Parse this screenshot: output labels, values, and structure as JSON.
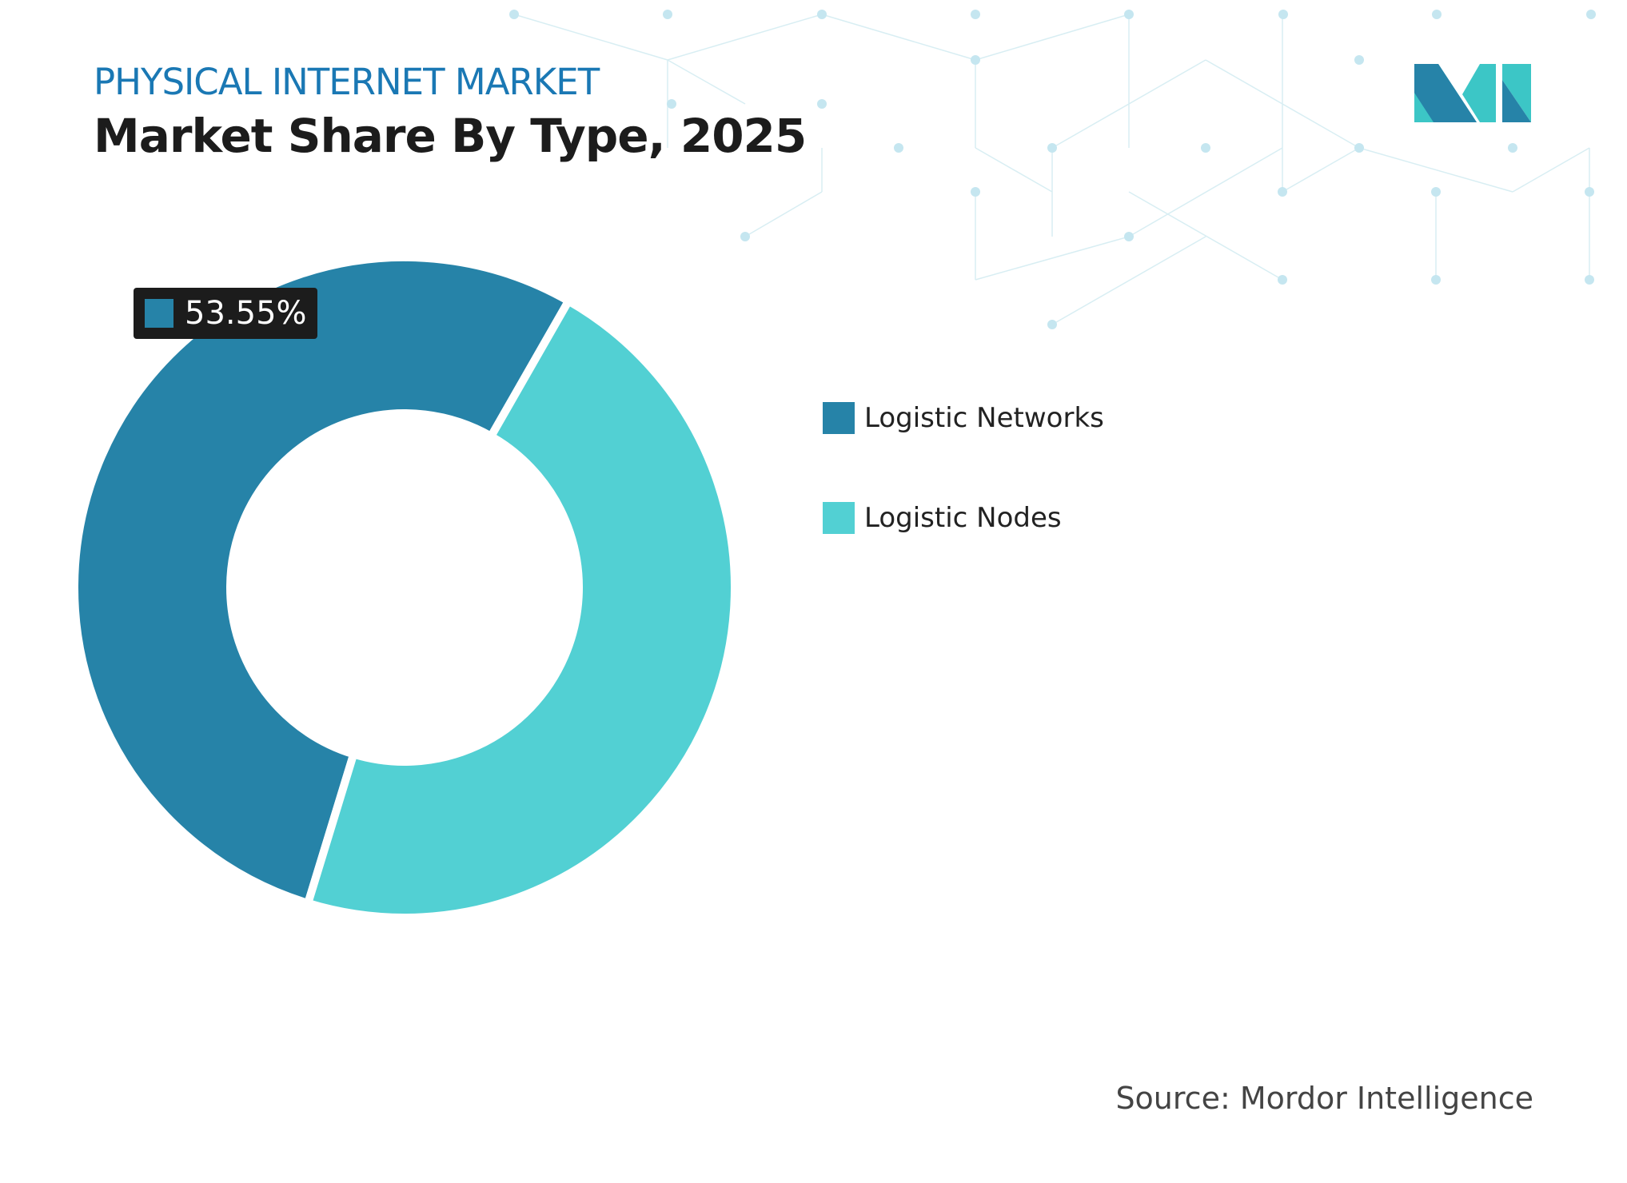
{
  "header": {
    "kicker": "PHYSICAL INTERNET MARKET",
    "title": "Market Share By Type, 2025"
  },
  "chart_data": {
    "type": "pie",
    "variant": "donut",
    "categories": [
      "Logistic Networks",
      "Logistic Nodes"
    ],
    "values": [
      53.55,
      46.45
    ],
    "colors": [
      "#2683a8",
      "#52d0d3"
    ],
    "data_labels": [
      {
        "category": "Logistic Networks",
        "text": "53.55%"
      }
    ],
    "legend_position": "right"
  },
  "source": "Source: Mordor Intelligence",
  "logo": {
    "colors": [
      "#2683a8",
      "#3cc6c6"
    ]
  }
}
